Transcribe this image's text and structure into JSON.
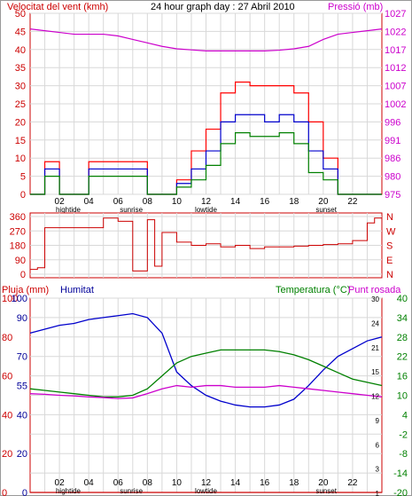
{
  "panel1": {
    "title": "24 hour graph day : 27 Abril 2010",
    "left_label": "Velocitat del vent (kmh)",
    "right_label": "Pressió (mb)",
    "left_ticks": [
      "50",
      "45",
      "40",
      "35",
      "30",
      "25",
      "20",
      "15",
      "10",
      "5",
      "0"
    ],
    "right_ticks": [
      "1027",
      "1022",
      "1017",
      "1012",
      "1007",
      "1002",
      "996",
      "991",
      "986",
      "980",
      "975"
    ],
    "hour_ticks": [
      "02",
      "04",
      "06",
      "08",
      "10",
      "12",
      "14",
      "16",
      "18",
      "20",
      "22"
    ],
    "event_labels": [
      "hightide",
      "sunrise",
      "lowtide",
      "sunset"
    ],
    "colors": {
      "gust": "#ff0000",
      "wind": "#0000cc",
      "min": "#008000",
      "pressure": "#cc00cc",
      "frame": "#cc0000"
    }
  },
  "panel2": {
    "left_ticks": [
      "360",
      "270",
      "180",
      "90",
      "0"
    ],
    "directions": [
      "N",
      "W",
      "S",
      "E",
      "N"
    ]
  },
  "panel3": {
    "left_label": "Pluja (mm)",
    "humidity_label": "Humitat",
    "right_label": "Temperatura (°C)",
    "dew_label": "Punt rosada",
    "rain_ticks": [
      "100",
      "80",
      "60",
      "40",
      "20",
      "0"
    ],
    "hum_ticks": [
      "100",
      "90",
      "70",
      "55",
      "40",
      "20",
      "0"
    ],
    "temp_ticks": [
      "40",
      "34",
      "28",
      "22",
      "16",
      "10",
      "4",
      "-2",
      "-8",
      "-14",
      "-20"
    ],
    "inner_ticks": [
      "30",
      "24",
      "21",
      "15",
      "12",
      "9",
      "6",
      "3",
      "1"
    ],
    "hour_ticks": [
      "02",
      "04",
      "06",
      "08",
      "10",
      "12",
      "14",
      "16",
      "18",
      "20",
      "22"
    ],
    "event_labels": [
      "hightide",
      "sunrise",
      "lowtide",
      "sunset"
    ],
    "colors": {
      "humidity": "#0000cc",
      "temp": "#008000",
      "dew": "#cc00cc",
      "rain": "#cc0000",
      "humtext": "#000099"
    }
  },
  "chart_data": [
    {
      "type": "line",
      "title": "24 hour graph day : 27 Abril 2010",
      "ylabel": "Velocitat del vent (kmh)",
      "y2label": "Pressió (mb)",
      "ylim": [
        0,
        50
      ],
      "y2lim": [
        975,
        1027
      ],
      "x": [
        0,
        1,
        2,
        3,
        4,
        5,
        6,
        7,
        8,
        9,
        10,
        11,
        12,
        13,
        14,
        15,
        16,
        17,
        18,
        19,
        20,
        21,
        22,
        23,
        24
      ],
      "series": [
        {
          "name": "gust",
          "values": [
            0,
            9,
            0,
            0,
            9,
            9,
            9,
            9,
            0,
            0,
            4,
            12,
            18,
            28,
            31,
            30,
            30,
            30,
            28,
            20,
            10,
            0,
            0,
            0,
            0
          ]
        },
        {
          "name": "wind",
          "values": [
            0,
            7,
            0,
            0,
            7,
            7,
            7,
            7,
            0,
            0,
            3,
            7,
            12,
            20,
            22,
            22,
            20,
            22,
            20,
            12,
            7,
            0,
            0,
            0,
            0
          ]
        },
        {
          "name": "min",
          "values": [
            0,
            5,
            0,
            0,
            5,
            5,
            5,
            5,
            0,
            0,
            2,
            4,
            8,
            14,
            17,
            16,
            16,
            17,
            14,
            6,
            4,
            0,
            0,
            0,
            0
          ]
        },
        {
          "name": "pressure",
          "values": [
            1022.5,
            1022,
            1021.5,
            1021,
            1021,
            1021,
            1020.5,
            1019.5,
            1018.5,
            1017.5,
            1016.8,
            1016.5,
            1016.2,
            1016.2,
            1016.2,
            1016.2,
            1016.2,
            1016.4,
            1016.8,
            1017.5,
            1019.5,
            1021,
            1021.5,
            1022,
            1022.5
          ]
        }
      ]
    },
    {
      "type": "line",
      "ylabel": "",
      "ylim": [
        0,
        360
      ],
      "x": [
        0,
        0.5,
        1,
        2,
        3,
        4,
        5,
        6,
        7,
        8,
        8.5,
        9,
        10,
        11,
        12,
        13,
        14,
        15,
        16,
        17,
        18,
        19,
        20,
        21,
        22,
        23,
        23.5,
        24
      ],
      "series": [
        {
          "name": "direction",
          "values": [
            30,
            40,
            290,
            290,
            290,
            290,
            350,
            330,
            20,
            340,
            50,
            260,
            200,
            180,
            190,
            170,
            180,
            160,
            170,
            170,
            175,
            180,
            185,
            190,
            210,
            320,
            350,
            345
          ]
        }
      ]
    },
    {
      "type": "line",
      "ylabel": "Humitat",
      "y2label": "Temperatura (°C)",
      "ylim": [
        0,
        100
      ],
      "y2lim": [
        -20,
        40
      ],
      "x": [
        0,
        1,
        2,
        3,
        4,
        5,
        6,
        7,
        8,
        9,
        10,
        11,
        12,
        13,
        14,
        15,
        16,
        17,
        18,
        19,
        20,
        21,
        22,
        23,
        24
      ],
      "series": [
        {
          "name": "Humitat",
          "values": [
            82,
            84,
            86,
            87,
            89,
            90,
            91,
            92,
            90,
            82,
            62,
            55,
            50,
            47,
            45,
            44,
            44,
            45,
            48,
            55,
            63,
            70,
            74,
            78,
            80
          ]
        },
        {
          "name": "Temperatura",
          "values": [
            12,
            11.5,
            11,
            10.5,
            10,
            9.5,
            9.5,
            10,
            12,
            16,
            20,
            22,
            23,
            24,
            24,
            24,
            24,
            23.5,
            22.5,
            21,
            19,
            17,
            15,
            14,
            13
          ]
        },
        {
          "name": "Punt rosada",
          "values": [
            10.5,
            10.3,
            10,
            9.8,
            9.5,
            9.3,
            9,
            9.2,
            10.5,
            12,
            13,
            12.5,
            13,
            13,
            12.5,
            12.5,
            12.5,
            13,
            12.5,
            12,
            11.5,
            11,
            10.5,
            10,
            9.5
          ]
        },
        {
          "name": "Pluja",
          "values": [
            0,
            0,
            0,
            0,
            0,
            0,
            0,
            0,
            0,
            0,
            0,
            0,
            0,
            0,
            0,
            0,
            0,
            0,
            0,
            0,
            0,
            0,
            0,
            0,
            0
          ]
        }
      ]
    }
  ]
}
